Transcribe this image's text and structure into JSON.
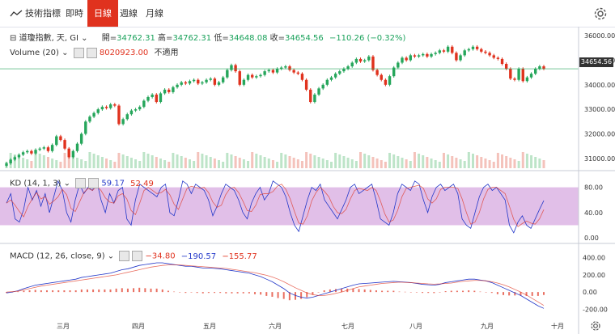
{
  "toolbar": {
    "logo_label": "技術指標",
    "tabs": [
      {
        "label": "即時",
        "active": false
      },
      {
        "label": "日線",
        "active": true
      },
      {
        "label": "週線",
        "active": false
      },
      {
        "label": "月線",
        "active": false
      }
    ]
  },
  "legend": {
    "symbol": "道瓊指數, 天, GI",
    "open_label": "開",
    "open": "34762.31",
    "high_label": "高",
    "high": "34762.31",
    "low_label": "低",
    "low": "34648.08",
    "close_label": "收",
    "close": "34654.56",
    "change": "−110.26 (−0.32%)",
    "volume_label": "Volume (20)",
    "volume_value": "8020923.00",
    "volume_note": "不適用",
    "kd_label": "KD (14, 1, 3)",
    "kd_k": "59.17",
    "kd_d": "52.49",
    "macd_label": "MACD (12, 26, close, 9)",
    "macd_hist": "−34.80",
    "macd_line": "−190.57",
    "macd_signal": "−155.77"
  },
  "last_price_tag": "34654.56",
  "colors": {
    "up": "#26a65b",
    "down": "#e0321e",
    "kd_band": "#c98ad6",
    "k_line": "#2338c9",
    "d_line": "#e0321e",
    "accent": "#e0321e"
  },
  "icons": [
    "trend-icon",
    "gear-icon",
    "collapse-icon",
    "settings-small-icon",
    "close-small-icon"
  ],
  "chart_data": {
    "type": "candlestick",
    "x_ticks": [
      "三月",
      "四月",
      "五月",
      "六月",
      "七月",
      "八月",
      "九月",
      "十月"
    ],
    "price_axis_ticks": [
      31000,
      32000,
      33000,
      34000,
      35000,
      36000
    ],
    "kd_axis_ticks": [
      0,
      40,
      80
    ],
    "macd_axis_ticks": [
      -200,
      0,
      200,
      400
    ],
    "price_ylim": [
      30600,
      36300
    ],
    "kd_ylim": [
      -5,
      100
    ],
    "macd_ylim": [
      -300,
      500
    ],
    "kd_band": [
      20,
      80
    ],
    "closes": [
      30800,
      30950,
      31050,
      31150,
      31250,
      31300,
      31200,
      31350,
      31400,
      31450,
      31300,
      31550,
      31900,
      31750,
      31400,
      31050,
      31300,
      31600,
      32000,
      32500,
      32700,
      32850,
      33000,
      33100,
      33050,
      33200,
      33150,
      32400,
      32600,
      32800,
      32950,
      33000,
      33100,
      33350,
      33500,
      33600,
      33300,
      33650,
      33800,
      33700,
      33900,
      34000,
      34100,
      34050,
      34150,
      34200,
      34050,
      34100,
      34200,
      34250,
      34000,
      34100,
      34300,
      34600,
      34800,
      34550,
      34000,
      34200,
      34400,
      34300,
      34350,
      34400,
      34550,
      34600,
      34500,
      34650,
      34700,
      34750,
      34600,
      34500,
      34450,
      34200,
      33800,
      33300,
      33600,
      33850,
      34000,
      34200,
      34300,
      34450,
      34550,
      34650,
      34750,
      34900,
      35050,
      34950,
      35000,
      35150,
      34600,
      34400,
      34200,
      34000,
      34350,
      34700,
      34900,
      35100,
      35000,
      35200,
      35150,
      35200,
      35250,
      35150,
      35250,
      35300,
      35400,
      35350,
      35550,
      35300,
      35000,
      35200,
      35400,
      35450,
      35550,
      35450,
      35350,
      35300,
      35200,
      35100,
      35050,
      34850,
      34650,
      34250,
      34200,
      34650,
      34150,
      34300,
      34450,
      34650,
      34750,
      34650
    ],
    "kd_k": [
      55,
      70,
      30,
      25,
      45,
      80,
      60,
      75,
      50,
      70,
      40,
      65,
      90,
      75,
      40,
      25,
      60,
      85,
      70,
      80,
      75,
      90,
      60,
      40,
      70,
      55,
      75,
      80,
      30,
      20,
      60,
      85,
      80,
      75,
      70,
      65,
      80,
      85,
      40,
      35,
      60,
      90,
      85,
      70,
      85,
      80,
      75,
      60,
      35,
      50,
      70,
      85,
      80,
      75,
      60,
      40,
      30,
      55,
      70,
      80,
      60,
      70,
      90,
      85,
      80,
      65,
      40,
      20,
      10,
      35,
      60,
      80,
      75,
      85,
      60,
      50,
      40,
      30,
      45,
      60,
      80,
      85,
      70,
      75,
      80,
      85,
      60,
      30,
      25,
      20,
      40,
      70,
      85,
      80,
      75,
      90,
      85,
      60,
      40,
      65,
      80,
      85,
      75,
      80,
      85,
      70,
      30,
      20,
      15,
      40,
      65,
      80,
      85,
      75,
      80,
      70,
      60,
      20,
      8,
      25,
      35,
      20,
      15,
      30,
      45,
      59
    ],
    "macd_line": [
      -10,
      0,
      15,
      40,
      60,
      80,
      90,
      100,
      110,
      120,
      130,
      140,
      150,
      170,
      180,
      190,
      200,
      210,
      220,
      240,
      260,
      270,
      290,
      310,
      320,
      330,
      340,
      340,
      330,
      320,
      310,
      300,
      300,
      290,
      280,
      280,
      275,
      270,
      260,
      250,
      240,
      230,
      220,
      200,
      180,
      150,
      120,
      80,
      40,
      -10,
      -40,
      -60,
      -70,
      -60,
      -40,
      -20,
      0,
      20,
      40,
      60,
      80,
      95,
      100,
      105,
      110,
      115,
      120,
      125,
      120,
      115,
      110,
      100,
      90,
      85,
      80,
      90,
      110,
      120,
      130,
      140,
      150,
      150,
      140,
      130,
      110,
      80,
      50,
      20,
      -10,
      -40,
      -80,
      -120,
      -160,
      -190
    ],
    "macd_signal": [
      0,
      5,
      10,
      25,
      40,
      55,
      70,
      80,
      90,
      100,
      110,
      120,
      130,
      140,
      150,
      160,
      170,
      180,
      190,
      200,
      215,
      230,
      245,
      260,
      275,
      290,
      300,
      310,
      315,
      315,
      315,
      310,
      305,
      300,
      295,
      290,
      285,
      280,
      275,
      265,
      255,
      245,
      235,
      225,
      210,
      195,
      175,
      150,
      120,
      85,
      50,
      20,
      -10,
      -30,
      -40,
      -40,
      -30,
      -15,
      0,
      20,
      40,
      60,
      70,
      80,
      90,
      100,
      105,
      110,
      115,
      112,
      110,
      105,
      100,
      95,
      92,
      95,
      100,
      105,
      115,
      125,
      130,
      135,
      135,
      130,
      120,
      105,
      85,
      60,
      30,
      0,
      -35,
      -75,
      -115,
      -156
    ]
  }
}
